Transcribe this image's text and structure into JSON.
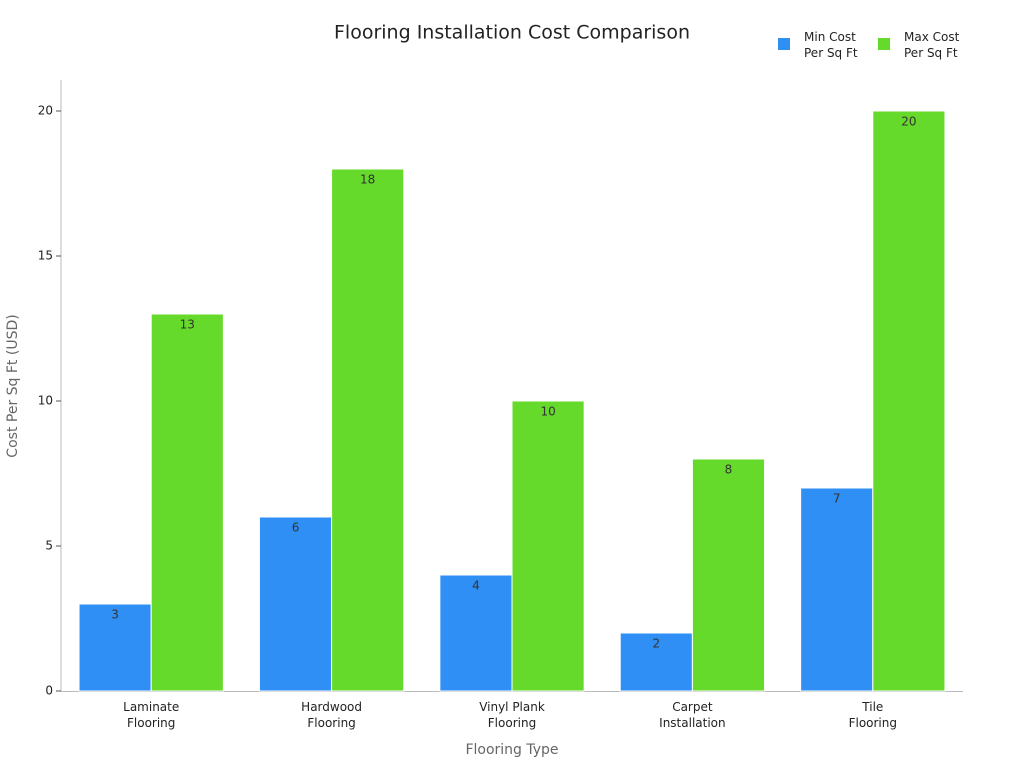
{
  "chart_data": {
    "type": "bar",
    "title": "Flooring Installation Cost Comparison",
    "x_label": "Flooring Type",
    "y_label": "Cost Per Sq Ft (USD)",
    "categories": [
      "Laminate\nFlooring",
      "Hardwood\nFlooring",
      "Vinyl Plank\nFlooring",
      "Carpet\nInstallation",
      "Tile\nFlooring"
    ],
    "series": [
      {
        "name": "Min Cost\nPer Sq Ft",
        "color": "#2f8ff5",
        "values": [
          3,
          6,
          4,
          2,
          7
        ]
      },
      {
        "name": "Max Cost\nPer Sq Ft",
        "color": "#66da2a",
        "values": [
          13,
          18,
          10,
          8,
          20
        ]
      }
    ],
    "ylim": [
      0,
      20
    ],
    "yticks": [
      0,
      5,
      10,
      15,
      20
    ],
    "legend": "upper right"
  }
}
